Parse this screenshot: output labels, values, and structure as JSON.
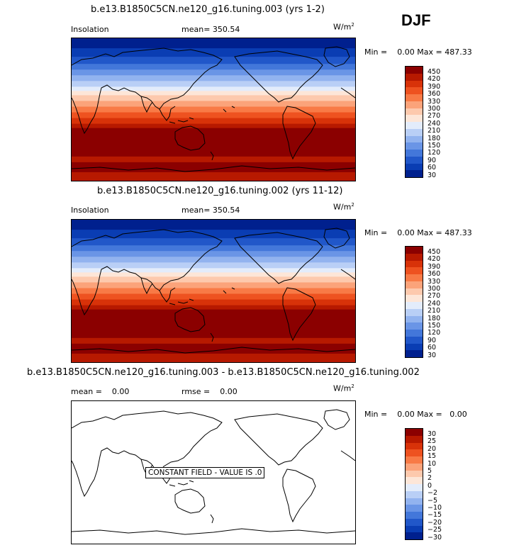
{
  "season": "DJF",
  "panels": [
    {
      "title": "b.e13.B1850C5CN.ne120_g16.tuning.003 (yrs 1-2)",
      "variable": "Insolation",
      "mean_label": "mean= 350.54",
      "units": "W/m",
      "units_sup": "2",
      "min_label": "Min =",
      "min_value": "0.00",
      "max_label": "Max =",
      "max_value": "487.33"
    },
    {
      "title": "b.e13.B1850C5CN.ne120_g16.tuning.002 (yrs 11-12)",
      "variable": "Insolation",
      "mean_label": "mean= 350.54",
      "units": "W/m",
      "units_sup": "2",
      "min_label": "Min =",
      "min_value": "0.00",
      "max_label": "Max =",
      "max_value": "487.33"
    },
    {
      "title": "b.e13.B1850C5CN.ne120_g16.tuning.003 - b.e13.B1850C5CN.ne120_g16.tuning.002",
      "mean_label": "mean =",
      "mean_value": "0.00",
      "rmse_label": "rmse =",
      "rmse_value": "0.00",
      "units": "W/m",
      "units_sup": "2",
      "min_label": "Min =",
      "min_value": "0.00",
      "max_label": "Max =",
      "max_value": "0.00",
      "constant_text": "CONSTANT FIELD - VALUE IS .0"
    }
  ],
  "chart_data": [
    {
      "type": "heatmap",
      "title": "b.e13.B1850C5CN.ne120_g16.tuning.003 (yrs 1-2)",
      "field": "Insolation",
      "units": "W/m2",
      "mean": 350.54,
      "min": 0.0,
      "max": 487.33,
      "colorbar_levels": [
        "450",
        "420",
        "390",
        "360",
        "330",
        "300",
        "270",
        "240",
        "210",
        "180",
        "150",
        "120",
        "90",
        "60",
        "30"
      ],
      "colors": [
        "#8b0000",
        "#b71900",
        "#d83209",
        "#ee5220",
        "#f87a46",
        "#fba37a",
        "#fdc9ad",
        "#fde6d8",
        "#e3ecfb",
        "#b9cff6",
        "#92b3ef",
        "#6a95e6",
        "#4377da",
        "#2157c9",
        "#0a3db3",
        "#00208e"
      ]
    },
    {
      "type": "heatmap",
      "title": "b.e13.B1850C5CN.ne120_g16.tuning.002 (yrs 11-12)",
      "field": "Insolation",
      "units": "W/m2",
      "mean": 350.54,
      "min": 0.0,
      "max": 487.33,
      "colorbar_levels": [
        "450",
        "420",
        "390",
        "360",
        "330",
        "300",
        "270",
        "240",
        "210",
        "180",
        "150",
        "120",
        "90",
        "60",
        "30"
      ],
      "colors": [
        "#8b0000",
        "#b71900",
        "#d83209",
        "#ee5220",
        "#f87a46",
        "#fba37a",
        "#fdc9ad",
        "#fde6d8",
        "#e3ecfb",
        "#b9cff6",
        "#92b3ef",
        "#6a95e6",
        "#4377da",
        "#2157c9",
        "#0a3db3",
        "#00208e"
      ]
    },
    {
      "type": "heatmap",
      "title": "b.e13.B1850C5CN.ne120_g16.tuning.003 - b.e13.B1850C5CN.ne120_g16.tuning.002",
      "mean": 0.0,
      "rmse": 0.0,
      "min": 0.0,
      "max": 0.0,
      "units": "W/m2",
      "colorbar_levels": [
        "30",
        "25",
        "20",
        "15",
        "10",
        "5",
        "2",
        "0",
        "−2",
        "−5",
        "−10",
        "−15",
        "−20",
        "−25",
        "−30"
      ],
      "colors": [
        "#8b0000",
        "#b71900",
        "#d83209",
        "#ee5220",
        "#f87a46",
        "#fba37a",
        "#fdc9ad",
        "#fde6d8",
        "#e3ecfb",
        "#b9cff6",
        "#92b3ef",
        "#6a95e6",
        "#4377da",
        "#2157c9",
        "#0a3db3",
        "#00208e"
      ]
    }
  ]
}
